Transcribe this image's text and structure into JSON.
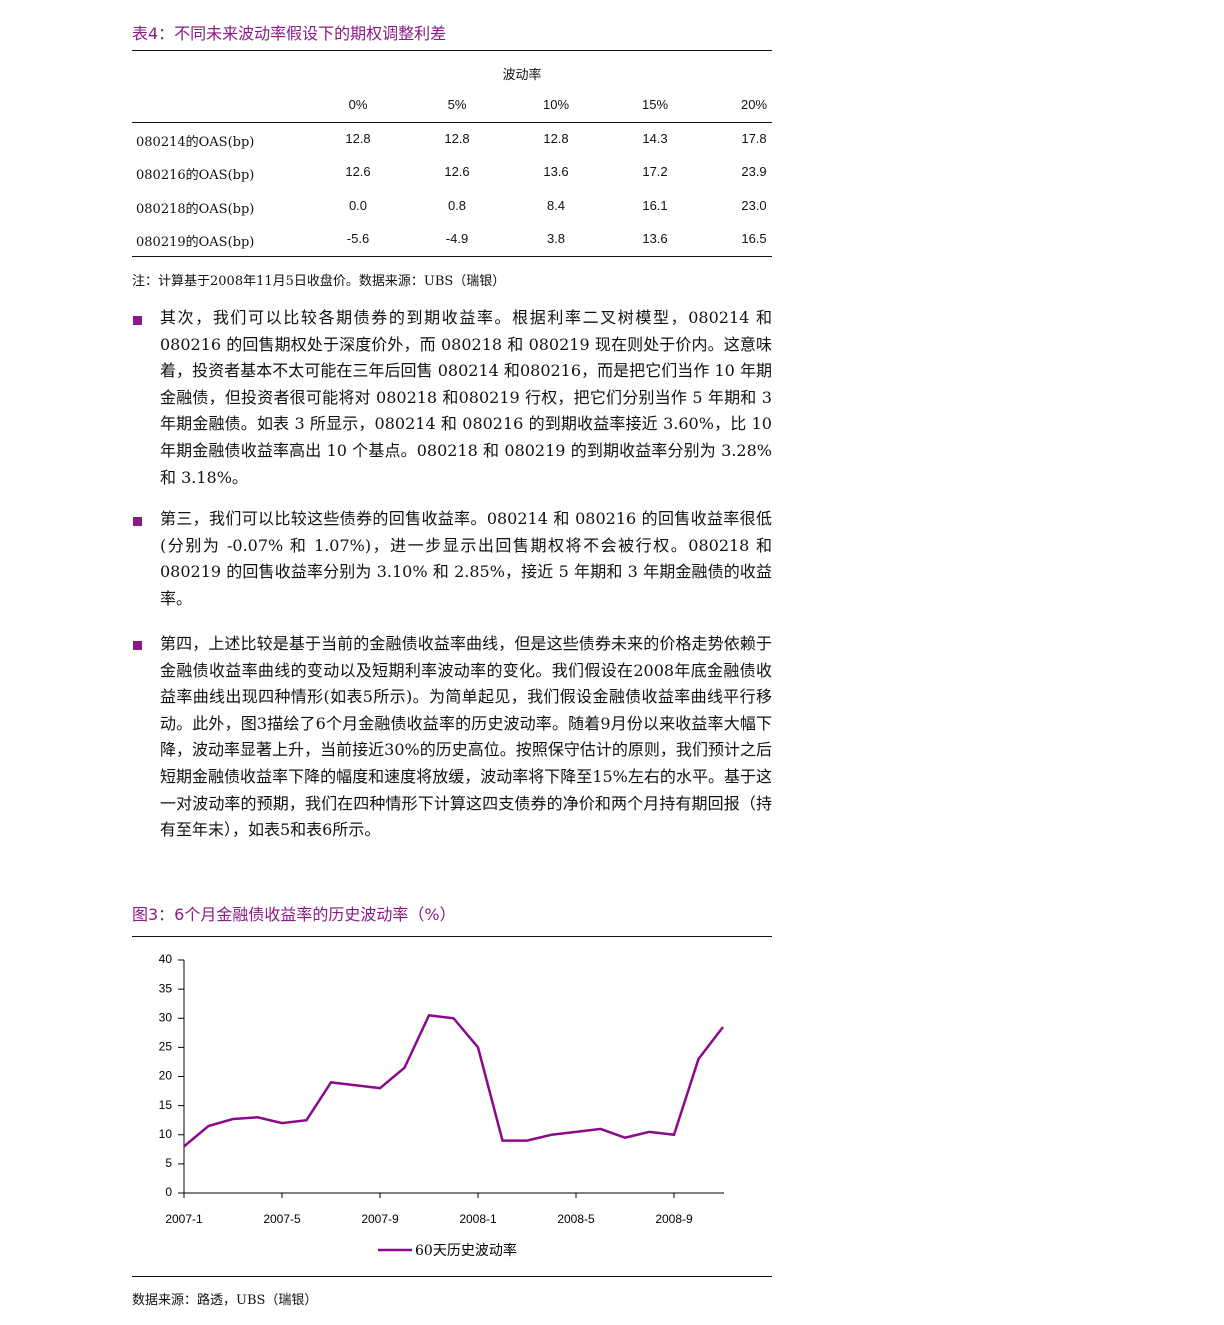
{
  "table": {
    "title": "表4：不同未来波动率假设下的期权调整利差",
    "group_header": "波动率",
    "columns": [
      "0%",
      "5%",
      "10%",
      "15%",
      "20%"
    ],
    "rows": [
      [
        "080214的OAS(bp)",
        "12.8",
        "12.8",
        "12.8",
        "14.3",
        "17.8"
      ],
      [
        "080216的OAS(bp)",
        "12.6",
        "12.6",
        "13.6",
        "17.2",
        "23.9"
      ],
      [
        "080218的OAS(bp)",
        "0.0",
        "0.8",
        "8.4",
        "16.1",
        "23.0"
      ],
      [
        "080219的OAS(bp)",
        "-5.6",
        "-4.9",
        "3.8",
        "13.6",
        "16.5"
      ]
    ],
    "note": "注：计算基于2008年11月5日收盘价。数据来源：UBS（瑞银）"
  },
  "paragraphs": [
    "其次，我们可以比较各期债券的到期收益率。根据利率二叉树模型，080214 和 080216 的回售期权处于深度价外，而 080218 和 080219 现在则处于价内。这意味着，投资者基本不太可能在三年后回售 080214 和080216，而是把它们当作 10 年期金融债，但投资者很可能将对 080218 和080219 行权，把它们分别当作 5 年期和 3 年期金融债。如表 3 所显示，080214 和 080216 的到期收益率接近 3.60%，比 10 年期金融债收益率高出 10 个基点。080218 和 080219 的到期收益率分别为 3.28% 和 3.18%。",
    "第三，我们可以比较这些债券的回售收益率。080214 和 080216 的回售收益率很低 (分别为 -0.07% 和 1.07%)，进一步显示出回售期权将不会被行权。080218 和 080219 的回售收益率分别为 3.10% 和 2.85%，接近 5 年期和 3 年期金融债的收益率。",
    "第四，上述比较是基于当前的金融债收益率曲线，但是这些债券未来的价格走势依赖于金融债收益率曲线的变动以及短期利率波动率的变化。我们假设在2008年底金融债收益率曲线出现四种情形(如表5所示)。为简单起见，我们假设金融债收益率曲线平行移动。此外，图3描绘了6个月金融债收益率的历史波动率。随着9月份以来收益率大幅下降，波动率显著上升，当前接近30%的历史高位。按照保守估计的原则，我们预计之后短期金融债收益率下降的幅度和速度将放缓，波动率将下降至15%左右的水平。基于这一对波动率的预期，我们在四种情形下计算这四支债券的净价和两个月持有期回报（持有至年末），如表5和表6所示。"
  ],
  "figure": {
    "title": "图3：6个月金融债收益率的历史波动率（%）",
    "source": "数据来源：路透，UBS（瑞银）",
    "chart_data": {
      "type": "line",
      "x": [
        "2007-1",
        null,
        null,
        null,
        "2007-5",
        null,
        null,
        null,
        "2007-9",
        null,
        null,
        null,
        "2008-1",
        null,
        null,
        null,
        "2008-5",
        null,
        null,
        null,
        "2008-9",
        null,
        null
      ],
      "series": [
        {
          "name": "60天历史波动率",
          "color": "#8b0a8b",
          "values": [
            8,
            11.5,
            12.7,
            13,
            12,
            12.5,
            19,
            18.5,
            18,
            21.5,
            30.5,
            30,
            25,
            9,
            9,
            10,
            10.5,
            11,
            9.5,
            10.5,
            10,
            23,
            28.5
          ]
        }
      ],
      "ylim": [
        0,
        40
      ],
      "yticks": [
        0,
        5,
        10,
        15,
        20,
        25,
        30,
        35,
        40
      ]
    }
  }
}
